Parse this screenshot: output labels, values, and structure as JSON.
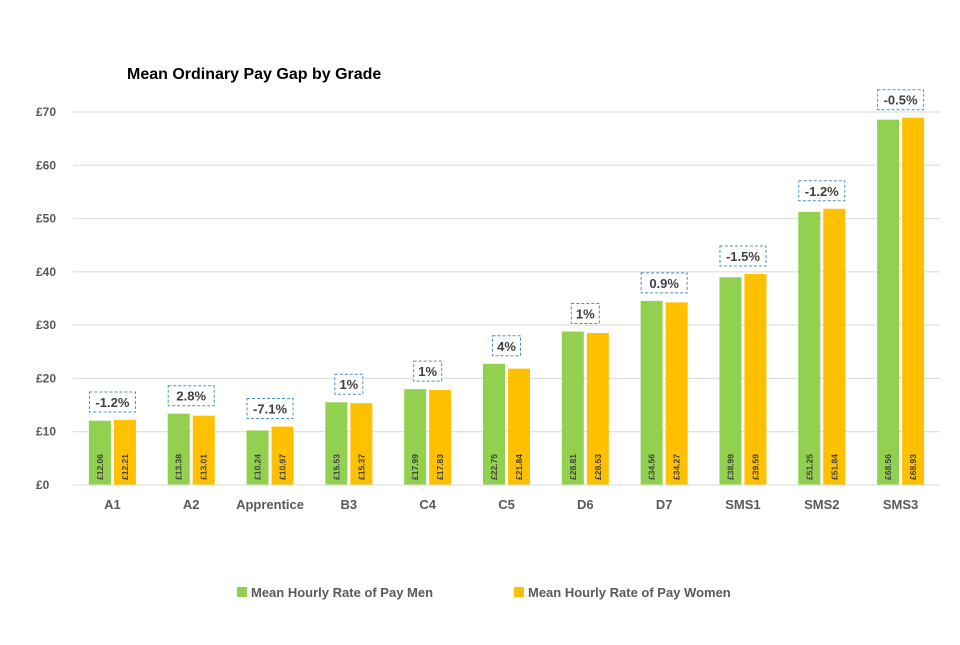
{
  "chart_data": {
    "type": "bar",
    "title": "Mean Ordinary Pay Gap by Grade",
    "categories": [
      "A1",
      "A2",
      "Apprentice",
      "B3",
      "C4",
      "C5",
      "D6",
      "D7",
      "SMS1",
      "SMS2",
      "SMS3"
    ],
    "series": [
      {
        "name": "Mean Hourly Rate of Pay Men",
        "color": "#92d050",
        "values": [
          12.06,
          13.38,
          10.24,
          15.53,
          17.99,
          22.75,
          28.81,
          34.56,
          38.99,
          51.25,
          68.56
        ],
        "labels": [
          "£12.06",
          "£13.38",
          "£10.24",
          "£15.53",
          "£17.99",
          "£22.75",
          "£28.81",
          "£34.56",
          "£38.99",
          "£51.25",
          "£68.56"
        ]
      },
      {
        "name": "Mean Hourly Rate of Pay Women",
        "color": "#ffc000",
        "values": [
          12.21,
          13.01,
          10.97,
          15.37,
          17.83,
          21.84,
          28.53,
          34.27,
          39.59,
          51.84,
          68.93
        ],
        "labels": [
          "£12.21",
          "£13.01",
          "£10.97",
          "£15.37",
          "£17.83",
          "£21.84",
          "£28.53",
          "£34.27",
          "£39.59",
          "£51.84",
          "£68.93"
        ]
      }
    ],
    "annotations": [
      "-1.2%",
      "2.8%",
      "-7.1%",
      "1%",
      "1%",
      "4%",
      "1%",
      "0.9%",
      "-1.5%",
      "-1.2%",
      "-0.5%"
    ],
    "ylim": [
      0,
      70
    ],
    "yticks": [
      0,
      10,
      20,
      30,
      40,
      50,
      60,
      70
    ],
    "ytick_labels": [
      "£0",
      "£10",
      "£20",
      "£30",
      "£40",
      "£50",
      "£60",
      "£70"
    ],
    "xlabel": "",
    "ylabel": "",
    "grid": true,
    "legend_position": "bottom"
  },
  "colors": {
    "grid": "#d9d9d9",
    "axis_text": "#595959",
    "annotation_border": "#4a90c8",
    "title": "#000000"
  }
}
